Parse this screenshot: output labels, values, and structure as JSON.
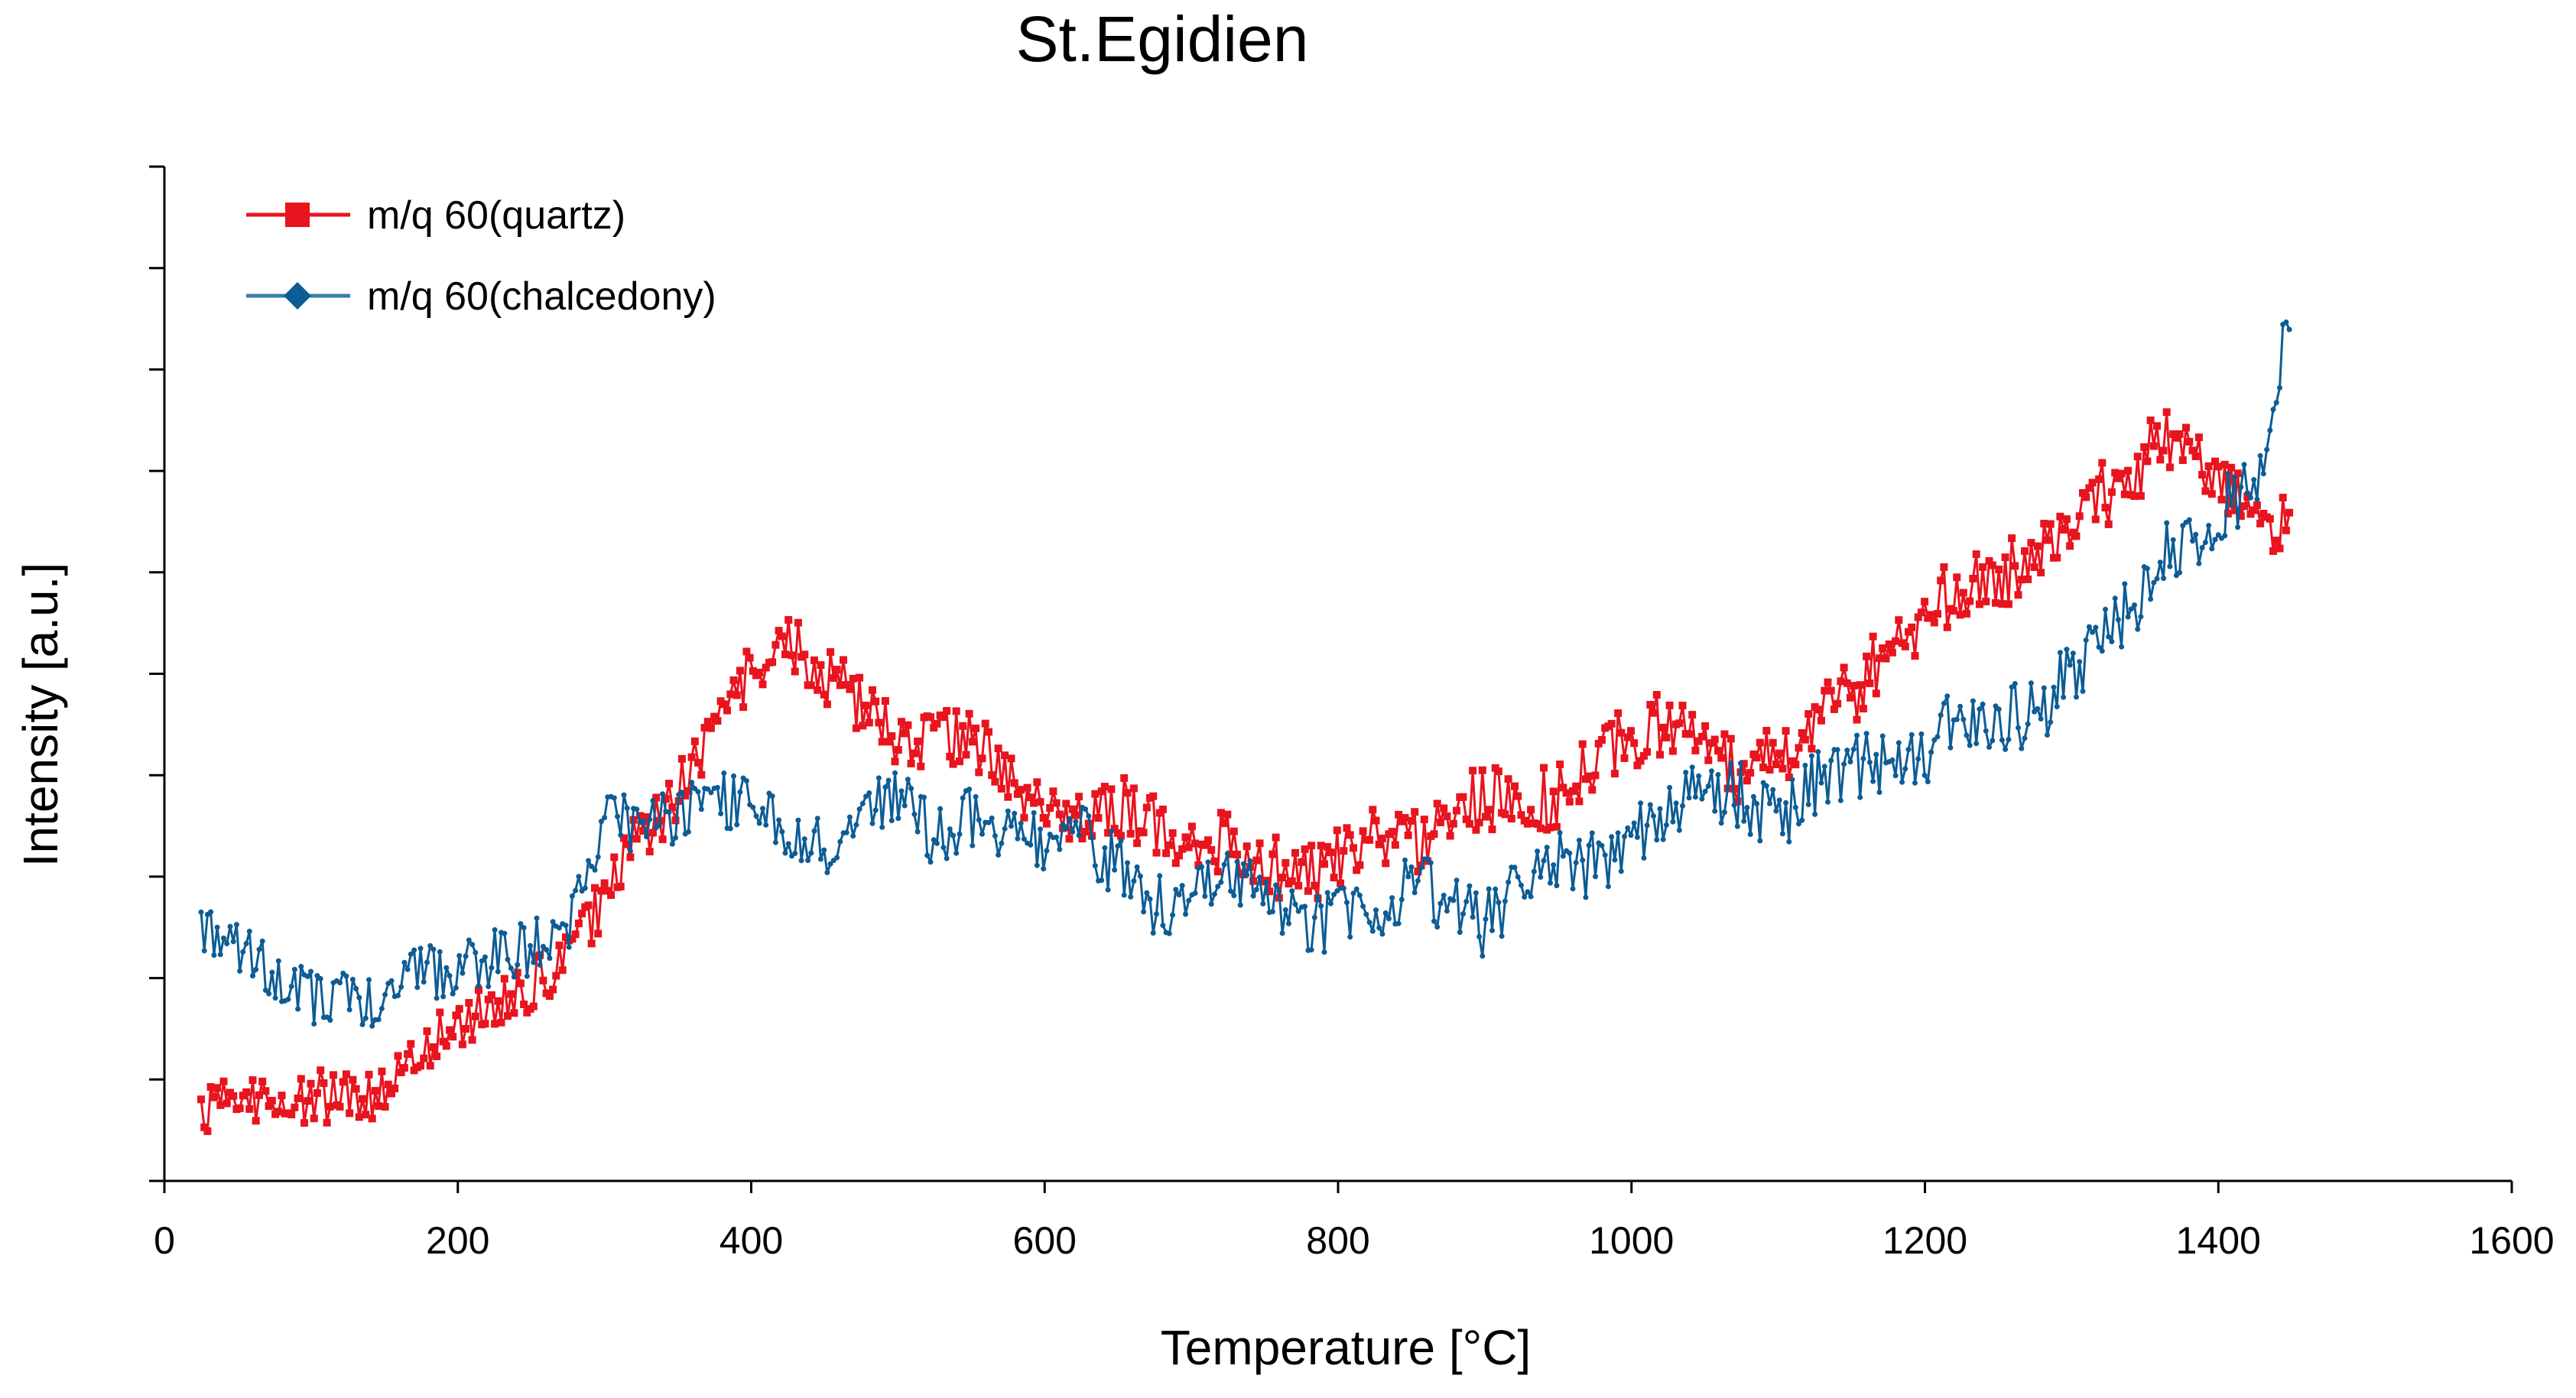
{
  "chart_data": {
    "type": "line",
    "title": "St.Egidien",
    "xlabel": "Temperature [°C]",
    "ylabel": "Intensity [a.u.]",
    "xlim": [
      0,
      1600
    ],
    "ylim": [
      0,
      10
    ],
    "x_ticks": [
      0,
      200,
      400,
      600,
      800,
      1000,
      1200,
      1400,
      1600
    ],
    "x_tick_labels": [
      "0",
      "200",
      "400",
      "600",
      "800",
      "1000",
      "1200",
      "1400",
      "1600"
    ],
    "y_ticks": [
      0,
      1,
      2,
      3,
      4,
      5,
      6,
      7,
      8,
      9,
      10
    ],
    "y_tick_labels_visible": false,
    "grid": false,
    "legend_position": "top-left",
    "series": [
      {
        "name": "m/q 60(quartz)",
        "color": "#e8141e",
        "marker": "square",
        "points": [
          [
            25,
            0.7
          ],
          [
            50,
            0.85
          ],
          [
            75,
            0.75
          ],
          [
            100,
            0.8
          ],
          [
            125,
            0.9
          ],
          [
            150,
            0.85
          ],
          [
            175,
            1.25
          ],
          [
            200,
            1.55
          ],
          [
            225,
            1.7
          ],
          [
            250,
            1.9
          ],
          [
            275,
            2.2
          ],
          [
            300,
            2.8
          ],
          [
            325,
            3.4
          ],
          [
            350,
            3.8
          ],
          [
            375,
            4.5
          ],
          [
            400,
            5.0
          ],
          [
            425,
            5.3
          ],
          [
            450,
            5.0
          ],
          [
            475,
            4.7
          ],
          [
            500,
            4.4
          ],
          [
            525,
            4.3
          ],
          [
            550,
            4.4
          ],
          [
            575,
            4.0
          ],
          [
            600,
            3.7
          ],
          [
            625,
            3.5
          ],
          [
            650,
            3.7
          ],
          [
            675,
            3.5
          ],
          [
            700,
            3.4
          ],
          [
            725,
            3.3
          ],
          [
            750,
            3.1
          ],
          [
            775,
            3.0
          ],
          [
            800,
            3.2
          ],
          [
            825,
            3.4
          ],
          [
            850,
            3.3
          ],
          [
            875,
            3.6
          ],
          [
            900,
            3.8
          ],
          [
            925,
            3.7
          ],
          [
            950,
            3.8
          ],
          [
            975,
            4.1
          ],
          [
            1000,
            4.4
          ],
          [
            1025,
            4.5
          ],
          [
            1050,
            4.4
          ],
          [
            1075,
            4.0
          ],
          [
            1100,
            4.2
          ],
          [
            1125,
            4.6
          ],
          [
            1150,
            4.8
          ],
          [
            1175,
            5.3
          ],
          [
            1200,
            5.6
          ],
          [
            1225,
            5.8
          ],
          [
            1250,
            5.9
          ],
          [
            1275,
            6.3
          ],
          [
            1300,
            6.5
          ],
          [
            1325,
            6.8
          ],
          [
            1350,
            7.1
          ],
          [
            1375,
            7.4
          ],
          [
            1400,
            7.0
          ],
          [
            1425,
            6.4
          ],
          [
            1450,
            6.5
          ]
        ]
      },
      {
        "name": "m/q 60(chalcedony)",
        "color": "#0d5c95",
        "marker": "diamond",
        "points": [
          [
            25,
            2.55
          ],
          [
            50,
            2.3
          ],
          [
            75,
            2.0
          ],
          [
            100,
            1.8
          ],
          [
            125,
            1.85
          ],
          [
            150,
            1.7
          ],
          [
            175,
            2.1
          ],
          [
            200,
            2.05
          ],
          [
            225,
            2.2
          ],
          [
            250,
            2.3
          ],
          [
            275,
            2.5
          ],
          [
            300,
            3.6
          ],
          [
            325,
            3.5
          ],
          [
            350,
            3.6
          ],
          [
            375,
            3.8
          ],
          [
            400,
            3.7
          ],
          [
            425,
            3.4
          ],
          [
            450,
            3.3
          ],
          [
            475,
            3.6
          ],
          [
            500,
            3.8
          ],
          [
            525,
            3.4
          ],
          [
            550,
            3.6
          ],
          [
            575,
            3.4
          ],
          [
            600,
            3.3
          ],
          [
            625,
            3.4
          ],
          [
            650,
            3.1
          ],
          [
            675,
            2.7
          ],
          [
            700,
            2.8
          ],
          [
            725,
            3.0
          ],
          [
            750,
            3.0
          ],
          [
            775,
            2.5
          ],
          [
            800,
            2.6
          ],
          [
            825,
            2.6
          ],
          [
            850,
            3.0
          ],
          [
            875,
            2.7
          ],
          [
            900,
            2.5
          ],
          [
            925,
            3.0
          ],
          [
            950,
            3.2
          ],
          [
            975,
            3.1
          ],
          [
            1000,
            3.4
          ],
          [
            1025,
            3.7
          ],
          [
            1050,
            3.9
          ],
          [
            1075,
            3.8
          ],
          [
            1100,
            3.5
          ],
          [
            1125,
            3.9
          ],
          [
            1150,
            4.1
          ],
          [
            1175,
            4.1
          ],
          [
            1200,
            4.2
          ],
          [
            1225,
            4.6
          ],
          [
            1250,
            4.5
          ],
          [
            1275,
            4.6
          ],
          [
            1300,
            5.0
          ],
          [
            1325,
            5.3
          ],
          [
            1350,
            5.9
          ],
          [
            1375,
            6.3
          ],
          [
            1400,
            6.6
          ],
          [
            1425,
            6.9
          ],
          [
            1450,
            8.6
          ]
        ]
      }
    ]
  }
}
